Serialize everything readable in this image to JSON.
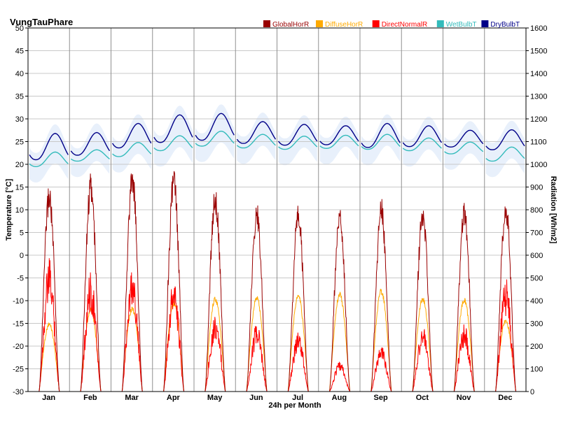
{
  "chart_data": {
    "type": "line",
    "title": "VungTauPhare",
    "xlabel": "24h per Month",
    "ylabel_left": "Temperature [°C]",
    "ylabel_right": "Radiation [Wh/m2]",
    "ylim_left": [
      -30,
      50
    ],
    "ylim_right": [
      0,
      1600
    ],
    "yticks_left": [
      "-30",
      "-25",
      "-20",
      "-15",
      "-10",
      "-5",
      "0",
      "5",
      "10",
      "15",
      "20",
      "25",
      "30",
      "35",
      "40",
      "45",
      "50"
    ],
    "yticks_right": [
      "0",
      "100",
      "200",
      "300",
      "400",
      "500",
      "600",
      "700",
      "800",
      "900",
      "1000",
      "1100",
      "1200",
      "1300",
      "1400",
      "1500",
      "1600"
    ],
    "categories": [
      "Jan",
      "Feb",
      "Mar",
      "Apr",
      "May",
      "Jun",
      "Jul",
      "Aug",
      "Sep",
      "Oct",
      "Nov",
      "Dec"
    ],
    "grid": true,
    "legend_position": "top-right",
    "series": [
      {
        "name": "GlobalHorR",
        "color": "#990000",
        "axis": "right",
        "unit": "Wh/m2",
        "monthly_peak": [
          920,
          965,
          1005,
          990,
          910,
          840,
          835,
          820,
          855,
          830,
          835,
          875
        ]
      },
      {
        "name": "DiffuseHorR",
        "color": "#ffaa00",
        "axis": "right",
        "unit": "Wh/m2",
        "monthly_peak": [
          305,
          370,
          375,
          400,
          420,
          425,
          430,
          440,
          455,
          420,
          415,
          320
        ]
      },
      {
        "name": "DirectNormalR",
        "color": "#ff0000",
        "axis": "right",
        "unit": "Wh/m2",
        "monthly_peak": [
          590,
          530,
          560,
          510,
          345,
          300,
          265,
          135,
          210,
          290,
          300,
          510
        ]
      },
      {
        "name": "WetBulbT",
        "color": "#33bbbb",
        "axis": "left",
        "unit": "°C",
        "monthly_min": [
          19.5,
          20.7,
          21.7,
          23.0,
          24.0,
          23.6,
          23.3,
          23.5,
          23.3,
          23.0,
          22.3,
          20.7
        ],
        "monthly_max": [
          22.7,
          23.2,
          24.8,
          26.3,
          27.3,
          26.6,
          26.2,
          26.4,
          26.6,
          25.8,
          24.9,
          23.8
        ]
      },
      {
        "name": "DryBulbT",
        "color": "#000088",
        "axis": "left",
        "unit": "°C",
        "monthly_min": [
          21.0,
          22.0,
          23.6,
          24.8,
          25.3,
          24.6,
          24.2,
          24.3,
          23.7,
          23.9,
          23.8,
          23.2
        ],
        "monthly_max": [
          26.8,
          27.0,
          29.0,
          30.9,
          31.2,
          29.4,
          28.8,
          28.5,
          29.0,
          28.5,
          27.5,
          27.6
        ]
      }
    ]
  }
}
